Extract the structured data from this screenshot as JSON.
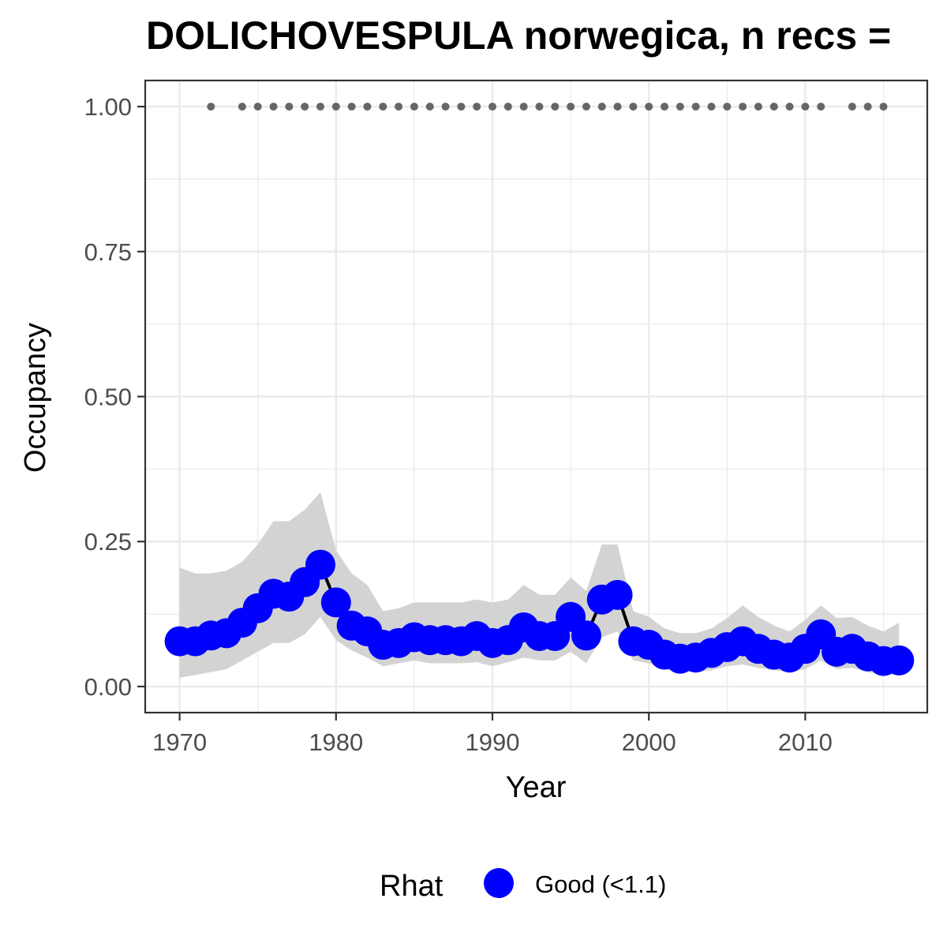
{
  "chart_data": {
    "type": "line",
    "title": "DOLICHOVESPULA norwegica, n recs = ",
    "xlabel": "Year",
    "ylabel": "Occupancy",
    "xlim": [
      1967.8,
      2017.8
    ],
    "ylim": [
      -0.045,
      1.045
    ],
    "x_ticks": [
      1970,
      1980,
      1990,
      2000,
      2010
    ],
    "x_tick_labels": [
      "1970",
      "1980",
      "1990",
      "2000",
      "2010"
    ],
    "y_ticks": [
      0,
      0.25,
      0.5,
      0.75,
      1.0
    ],
    "y_tick_labels": [
      "0.00",
      "0.25",
      "0.50",
      "0.75",
      "1.00"
    ],
    "grid": true,
    "legend": {
      "title": "Rhat",
      "position": "bottom",
      "entries": [
        {
          "label": "Good (<1.1)",
          "color": "#0000ff"
        }
      ]
    },
    "colors": {
      "points": "#0000ff",
      "line": "#000000",
      "ribbon": "#d3d3d3",
      "records": "#666666",
      "panel_border": "#333333"
    },
    "series": [
      {
        "name": "Good (<1.1)",
        "x": [
          1970,
          1971,
          1972,
          1973,
          1974,
          1975,
          1976,
          1977,
          1978,
          1979,
          1980,
          1981,
          1982,
          1983,
          1984,
          1985,
          1986,
          1987,
          1988,
          1989,
          1990,
          1991,
          1992,
          1993,
          1994,
          1995,
          1996,
          1997,
          1998,
          1999,
          2000,
          2001,
          2002,
          2003,
          2004,
          2005,
          2006,
          2007,
          2008,
          2009,
          2010,
          2011,
          2012,
          2013,
          2014,
          2015,
          2016
        ],
        "y": [
          0.078,
          0.078,
          0.088,
          0.092,
          0.11,
          0.135,
          0.16,
          0.155,
          0.18,
          0.21,
          0.145,
          0.105,
          0.095,
          0.072,
          0.075,
          0.085,
          0.08,
          0.08,
          0.078,
          0.087,
          0.075,
          0.08,
          0.102,
          0.087,
          0.087,
          0.12,
          0.088,
          0.15,
          0.158,
          0.078,
          0.072,
          0.055,
          0.048,
          0.05,
          0.058,
          0.068,
          0.078,
          0.065,
          0.055,
          0.05,
          0.065,
          0.09,
          0.06,
          0.065,
          0.052,
          0.044,
          0.045
        ],
        "lower": [
          0.015,
          0.02,
          0.025,
          0.03,
          0.045,
          0.06,
          0.075,
          0.075,
          0.09,
          0.12,
          0.08,
          0.062,
          0.05,
          0.035,
          0.04,
          0.045,
          0.04,
          0.04,
          0.04,
          0.042,
          0.035,
          0.042,
          0.05,
          0.045,
          0.045,
          0.06,
          0.04,
          0.085,
          0.095,
          0.045,
          0.04,
          0.03,
          0.025,
          0.025,
          0.028,
          0.035,
          0.038,
          0.032,
          0.028,
          0.025,
          0.03,
          0.045,
          0.03,
          0.032,
          0.025,
          0.02,
          0.02
        ],
        "upper": [
          0.205,
          0.195,
          0.195,
          0.2,
          0.215,
          0.245,
          0.285,
          0.285,
          0.305,
          0.335,
          0.235,
          0.195,
          0.175,
          0.13,
          0.135,
          0.145,
          0.145,
          0.145,
          0.145,
          0.15,
          0.145,
          0.15,
          0.175,
          0.158,
          0.158,
          0.188,
          0.165,
          0.245,
          0.245,
          0.13,
          0.12,
          0.1,
          0.092,
          0.092,
          0.1,
          0.118,
          0.14,
          0.12,
          0.105,
          0.095,
          0.115,
          0.14,
          0.118,
          0.12,
          0.105,
          0.095,
          0.11
        ]
      },
      {
        "name": "",
        "x": [
          1972,
          1974,
          1975,
          1976,
          1977,
          1978,
          1979,
          1980,
          1981,
          1982,
          1983,
          1984,
          1985,
          1986,
          1987,
          1988,
          1989,
          1990,
          1991,
          1992,
          1993,
          1994,
          1995,
          1996,
          1997,
          1998,
          1999,
          2000,
          2001,
          2002,
          2003,
          2004,
          2005,
          2006,
          2007,
          2008,
          2009,
          2010,
          2011,
          2013,
          2014,
          2015
        ],
        "y": [
          1,
          1,
          1,
          1,
          1,
          1,
          1,
          1,
          1,
          1,
          1,
          1,
          1,
          1,
          1,
          1,
          1,
          1,
          1,
          1,
          1,
          1,
          1,
          1,
          1,
          1,
          1,
          1,
          1,
          1,
          1,
          1,
          1,
          1,
          1,
          1,
          1,
          1,
          1,
          1,
          1,
          1
        ]
      }
    ]
  }
}
